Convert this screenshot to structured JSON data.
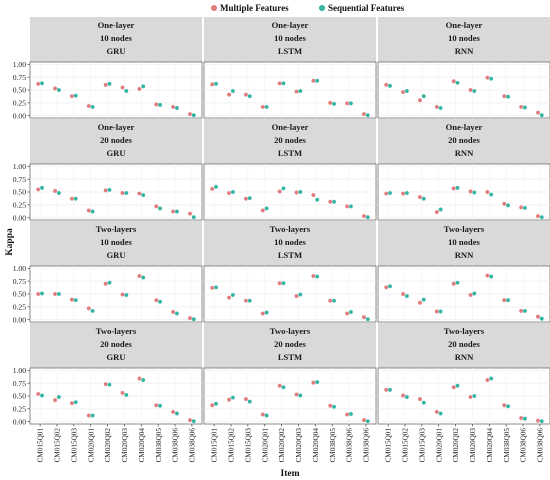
{
  "chart_data": {
    "type": "scatter",
    "xlabel": "Item",
    "ylabel": "Kappa",
    "ylim": [
      0,
      1.0
    ],
    "yticks": [
      "0.00",
      "0.25",
      "0.50",
      "0.75",
      "1.00"
    ],
    "legend_position": "top",
    "categories": [
      "CM015Q01",
      "CM015Q02",
      "CM015Q03",
      "CM020Q01",
      "CM020Q02",
      "CM020Q03",
      "CM020Q04",
      "CM038Q05",
      "CM038Q06",
      "CM038Q06"
    ],
    "series_info": [
      {
        "name": "Multiple Features",
        "color": "#e07b7b"
      },
      {
        "name": "Sequential Features",
        "color": "#33b5a4"
      }
    ],
    "panels": [
      {
        "row": 0,
        "col": 0,
        "strip": [
          "One-layer",
          "10 nodes",
          "GRU"
        ],
        "series": [
          {
            "values": [
              0.62,
              0.53,
              0.38,
              0.19,
              0.6,
              0.55,
              0.52,
              0.22,
              0.17,
              0.03
            ]
          },
          {
            "values": [
              0.63,
              0.5,
              0.39,
              0.17,
              0.62,
              0.48,
              0.57,
              0.21,
              0.15,
              0.01
            ]
          }
        ]
      },
      {
        "row": 0,
        "col": 1,
        "strip": [
          "One-layer",
          "10 nodes",
          "LSTM"
        ],
        "series": [
          {
            "values": [
              0.61,
              0.41,
              0.41,
              0.17,
              0.63,
              0.47,
              0.68,
              0.25,
              0.24,
              0.03
            ]
          },
          {
            "values": [
              0.62,
              0.48,
              0.38,
              0.17,
              0.63,
              0.48,
              0.68,
              0.23,
              0.24,
              0.01
            ]
          }
        ]
      },
      {
        "row": 0,
        "col": 2,
        "strip": [
          "One-layer",
          "10 nodes",
          "RNN"
        ],
        "series": [
          {
            "values": [
              0.6,
              0.46,
              0.3,
              0.17,
              0.67,
              0.5,
              0.74,
              0.38,
              0.17,
              0.06
            ]
          },
          {
            "values": [
              0.58,
              0.48,
              0.38,
              0.15,
              0.64,
              0.48,
              0.72,
              0.37,
              0.16,
              0.01
            ]
          }
        ]
      },
      {
        "row": 1,
        "col": 0,
        "strip": [
          "One-layer",
          "20 nodes",
          "GRU"
        ],
        "series": [
          {
            "values": [
              0.55,
              0.52,
              0.37,
              0.14,
              0.53,
              0.48,
              0.47,
              0.22,
              0.12,
              0.08
            ]
          },
          {
            "values": [
              0.58,
              0.48,
              0.37,
              0.12,
              0.54,
              0.48,
              0.44,
              0.18,
              0.12,
              0.01
            ]
          }
        ]
      },
      {
        "row": 1,
        "col": 1,
        "strip": [
          "One-layer",
          "20 nodes",
          "LSTM"
        ],
        "series": [
          {
            "values": [
              0.56,
              0.48,
              0.37,
              0.14,
              0.51,
              0.49,
              0.44,
              0.31,
              0.22,
              0.03
            ]
          },
          {
            "values": [
              0.6,
              0.5,
              0.38,
              0.18,
              0.57,
              0.5,
              0.35,
              0.31,
              0.22,
              0.01
            ]
          }
        ]
      },
      {
        "row": 1,
        "col": 2,
        "strip": [
          "One-layer",
          "20 nodes",
          "RNN"
        ],
        "series": [
          {
            "values": [
              0.47,
              0.47,
              0.4,
              0.11,
              0.57,
              0.51,
              0.5,
              0.27,
              0.2,
              0.03
            ]
          },
          {
            "values": [
              0.48,
              0.48,
              0.37,
              0.16,
              0.58,
              0.49,
              0.45,
              0.24,
              0.19,
              0.01
            ]
          }
        ]
      },
      {
        "row": 2,
        "col": 0,
        "strip": [
          "Two-layers",
          "10 nodes",
          "GRU"
        ],
        "series": [
          {
            "values": [
              0.5,
              0.5,
              0.39,
              0.22,
              0.7,
              0.49,
              0.85,
              0.38,
              0.15,
              0.03
            ]
          },
          {
            "values": [
              0.51,
              0.5,
              0.38,
              0.17,
              0.72,
              0.48,
              0.82,
              0.35,
              0.12,
              0.01
            ]
          }
        ]
      },
      {
        "row": 2,
        "col": 1,
        "strip": [
          "Two-layers",
          "10 nodes",
          "LSTM"
        ],
        "series": [
          {
            "values": [
              0.62,
              0.43,
              0.37,
              0.12,
              0.71,
              0.46,
              0.85,
              0.37,
              0.12,
              0.05
            ]
          },
          {
            "values": [
              0.63,
              0.48,
              0.37,
              0.14,
              0.71,
              0.49,
              0.84,
              0.37,
              0.15,
              0.01
            ]
          }
        ]
      },
      {
        "row": 2,
        "col": 2,
        "strip": [
          "Two-layers",
          "10 nodes",
          "RNN"
        ],
        "series": [
          {
            "values": [
              0.63,
              0.5,
              0.33,
              0.16,
              0.7,
              0.48,
              0.86,
              0.38,
              0.17,
              0.06
            ]
          },
          {
            "values": [
              0.65,
              0.46,
              0.39,
              0.16,
              0.72,
              0.51,
              0.84,
              0.38,
              0.17,
              0.02
            ]
          }
        ]
      },
      {
        "row": 3,
        "col": 0,
        "strip": [
          "Two-layers",
          "20 nodes",
          "GRU"
        ],
        "series": [
          {
            "values": [
              0.54,
              0.42,
              0.36,
              0.12,
              0.73,
              0.56,
              0.84,
              0.32,
              0.19,
              0.03
            ]
          },
          {
            "values": [
              0.51,
              0.48,
              0.38,
              0.12,
              0.72,
              0.52,
              0.81,
              0.31,
              0.16,
              0.01
            ]
          }
        ]
      },
      {
        "row": 3,
        "col": 1,
        "strip": [
          "Two-layers",
          "20 nodes",
          "LSTM"
        ],
        "series": [
          {
            "values": [
              0.32,
              0.43,
              0.44,
              0.14,
              0.7,
              0.53,
              0.76,
              0.31,
              0.14,
              0.03
            ]
          },
          {
            "values": [
              0.35,
              0.47,
              0.39,
              0.12,
              0.67,
              0.51,
              0.77,
              0.29,
              0.15,
              0.01
            ]
          }
        ]
      },
      {
        "row": 3,
        "col": 2,
        "strip": [
          "Two-layers",
          "20 nodes",
          "RNN"
        ],
        "series": [
          {
            "values": [
              0.62,
              0.51,
              0.44,
              0.19,
              0.67,
              0.48,
              0.81,
              0.32,
              0.07,
              0.02
            ]
          },
          {
            "values": [
              0.62,
              0.48,
              0.37,
              0.16,
              0.7,
              0.5,
              0.84,
              0.3,
              0.06,
              0.01
            ]
          }
        ]
      }
    ]
  }
}
